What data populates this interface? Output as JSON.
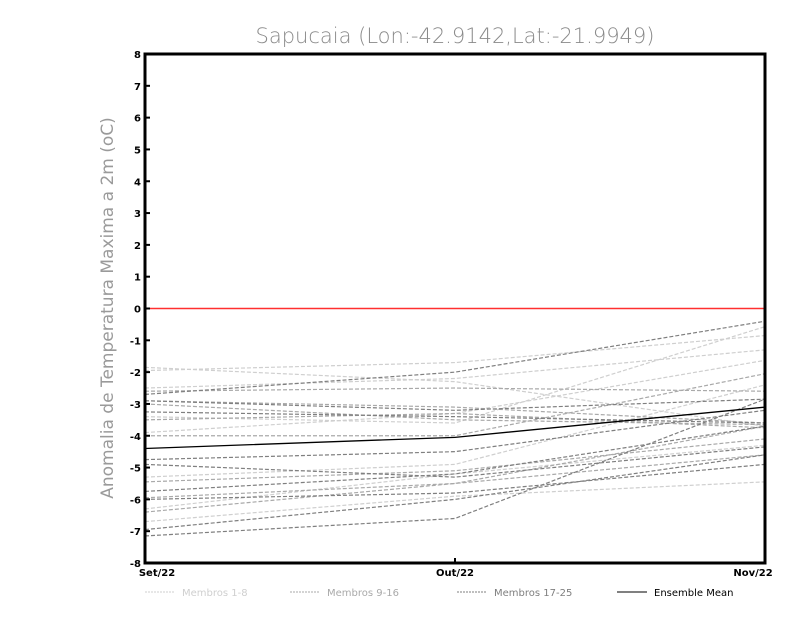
{
  "chart_data": {
    "type": "line",
    "title": "Sapucaia (Lon:-42.9142,Lat:-21.9949)",
    "xlabel": "",
    "ylabel": "Anomalia de Temperatura Maxima a 2m (oC)",
    "ylim": [
      -8,
      8
    ],
    "yticks": [
      "-8",
      "-7",
      "-6",
      "-5",
      "-4",
      "-3",
      "-2",
      "-1",
      "0",
      "1",
      "2",
      "3",
      "4",
      "5",
      "6",
      "7",
      "8"
    ],
    "categories": [
      "Set/22",
      "Out/22",
      "Nov/22"
    ],
    "reference_line": {
      "value": 0,
      "color": "#ff3030"
    },
    "groups": [
      {
        "name": "Membros 1-8",
        "color": "#cfcfcf"
      },
      {
        "name": "Membros 9-16",
        "color": "#a9a9a9"
      },
      {
        "name": "Membros 17-25",
        "color": "#7f7f7f"
      },
      {
        "name": "Ensemble Mean",
        "color": "#000000"
      }
    ],
    "series": [
      {
        "group": 0,
        "values": [
          -1.85,
          -2.3,
          -3.7
        ]
      },
      {
        "group": 0,
        "values": [
          -1.95,
          -1.7,
          -0.85
        ]
      },
      {
        "group": 0,
        "values": [
          -2.5,
          -2.2,
          -1.3
        ]
      },
      {
        "group": 0,
        "values": [
          -3.9,
          -3.3,
          -1.63
        ]
      },
      {
        "group": 0,
        "values": [
          -5.3,
          -4.9,
          -2.4
        ]
      },
      {
        "group": 0,
        "values": [
          -6.3,
          -5.2,
          -4.3
        ]
      },
      {
        "group": 0,
        "values": [
          -6.7,
          -5.9,
          -5.45
        ]
      },
      {
        "group": 0,
        "values": [
          -3.4,
          -3.6,
          -0.57
        ]
      },
      {
        "group": 1,
        "values": [
          -2.6,
          -2.5,
          -2.6
        ]
      },
      {
        "group": 1,
        "values": [
          -3.0,
          -3.5,
          -3.65
        ]
      },
      {
        "group": 1,
        "values": [
          -3.5,
          -3.3,
          -3.75
        ]
      },
      {
        "group": 1,
        "values": [
          -4.0,
          -4.0,
          -2.05
        ]
      },
      {
        "group": 1,
        "values": [
          -5.45,
          -5.1,
          -4.1
        ]
      },
      {
        "group": 1,
        "values": [
          -5.95,
          -5.5,
          -4.6
        ]
      },
      {
        "group": 1,
        "values": [
          -6.4,
          -5.5,
          -3.7
        ]
      },
      {
        "group": 1,
        "values": [
          -2.9,
          -3.1,
          -3.6
        ]
      },
      {
        "group": 2,
        "values": [
          -2.7,
          -2.0,
          -0.4
        ]
      },
      {
        "group": 2,
        "values": [
          -2.9,
          -3.2,
          -2.85
        ]
      },
      {
        "group": 2,
        "values": [
          -3.25,
          -3.4,
          -3.6
        ]
      },
      {
        "group": 2,
        "values": [
          -4.75,
          -4.5,
          -3.2
        ]
      },
      {
        "group": 2,
        "values": [
          -4.9,
          -5.3,
          -4.35
        ]
      },
      {
        "group": 2,
        "values": [
          -5.75,
          -5.2,
          -3.7
        ]
      },
      {
        "group": 2,
        "values": [
          -6.0,
          -5.8,
          -4.9
        ]
      },
      {
        "group": 2,
        "values": [
          -6.95,
          -6.0,
          -4.6
        ]
      },
      {
        "group": 2,
        "values": [
          -7.15,
          -6.6,
          -2.85
        ]
      },
      {
        "group": 3,
        "values": [
          -4.4,
          -4.05,
          -3.1
        ]
      }
    ],
    "legend": "bottom"
  }
}
